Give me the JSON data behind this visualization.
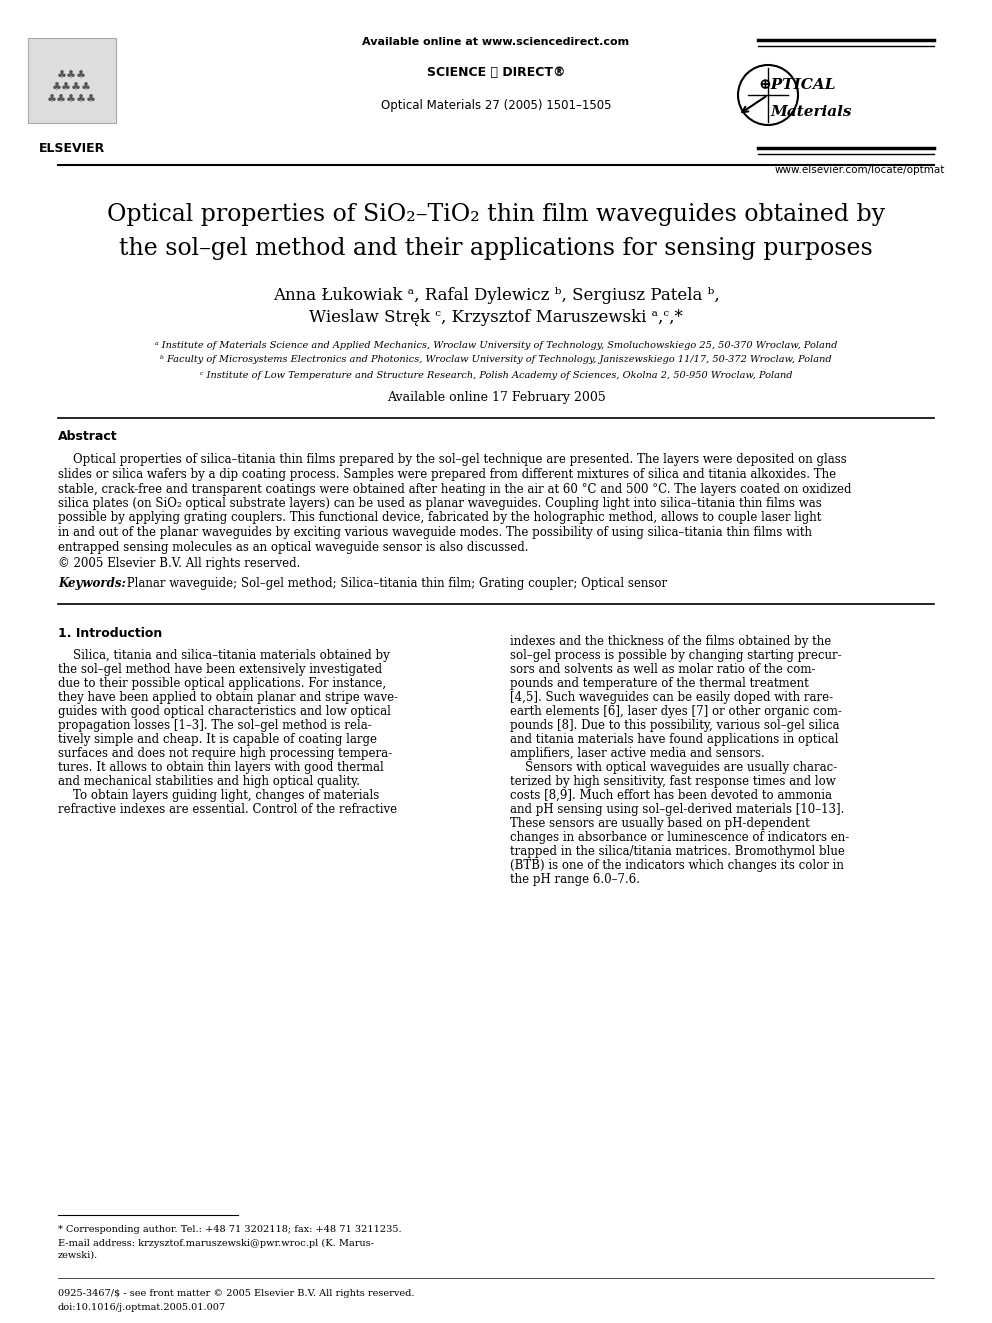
{
  "bg_color": "#ffffff",
  "available_online_text": "Available online at www.sciencedirect.com",
  "science_direct": "SCIENCE ⓓ DIRECT®",
  "journal_ref": "Optical Materials 27 (2005) 1501–1505",
  "elsevier_text": "ELSEVIER",
  "website": "www.elsevier.com/locate/optmat",
  "optical_line1": "⊕PTICAL",
  "optical_line2": "Materials",
  "title_line1": "Optical properties of SiO₂–TiO₂ thin film waveguides obtained by",
  "title_line2": "the sol–gel method and their applications for sensing purposes",
  "authors_line1": "Anna Łukowiak ᵃ, Rafal Dylewicz ᵇ, Sergiusz Patela ᵇ,",
  "authors_line2": "Wieslaw Stręk ᶜ, Krzysztof Maruszewski ᵃ,ᶜ,*",
  "affil_a": "ᵃ Institute of Materials Science and Applied Mechanics, Wroclaw University of Technology, Smoluchowskiego 25, 50-370 Wroclaw, Poland",
  "affil_b": "ᵇ Faculty of Microsystems Electronics and Photonics, Wroclaw University of Technology, Janiszewskiego 11/17, 50-372 Wroclaw, Poland",
  "affil_c": "ᶜ Institute of Low Temperature and Structure Research, Polish Academy of Sciences, Okolna 2, 50-950 Wroclaw, Poland",
  "available_online_date": "Available online 17 February 2005",
  "abstract_title": "Abstract",
  "copyright": "© 2005 Elsevier B.V. All rights reserved.",
  "keywords_label": "Keywords:",
  "keywords_text": " Planar waveguide; Sol–gel method; Silica–titania thin film; Grating coupler; Optical sensor",
  "intro_heading": "1. Introduction",
  "footnote_corresponding": "* Corresponding author. Tel.: +48 71 3202118; fax: +48 71 3211235.",
  "footnote_email": "E-mail address: krzysztof.maruszewski@pwr.wroc.pl (K. Marus-",
  "footnote_email2": "zewski).",
  "footer_issn": "0925-3467/$ - see front matter © 2005 Elsevier B.V. All rights reserved.",
  "footer_doi": "doi:10.1016/j.optmat.2005.01.007",
  "abstract_lines": [
    "    Optical properties of silica–titania thin films prepared by the sol–gel technique are presented. The layers were deposited on glass",
    "slides or silica wafers by a dip coating process. Samples were prepared from different mixtures of silica and titania alkoxides. The",
    "stable, crack-free and transparent coatings were obtained after heating in the air at 60 °C and 500 °C. The layers coated on oxidized",
    "silica plates (on SiO₂ optical substrate layers) can be used as planar waveguides. Coupling light into silica–titania thin films was",
    "possible by applying grating couplers. This functional device, fabricated by the holographic method, allows to couple laser light",
    "in and out of the planar waveguides by exciting various waveguide modes. The possibility of using silica–titania thin films with",
    "entrapped sensing molecules as an optical waveguide sensor is also discussed."
  ],
  "intro_col1_lines": [
    "    Silica, titania and silica–titania materials obtained by",
    "the sol–gel method have been extensively investigated",
    "due to their possible optical applications. For instance,",
    "they have been applied to obtain planar and stripe wave-",
    "guides with good optical characteristics and low optical",
    "propagation losses [1–3]. The sol–gel method is rela-",
    "tively simple and cheap. It is capable of coating large",
    "surfaces and does not require high processing tempera-",
    "tures. It allows to obtain thin layers with good thermal",
    "and mechanical stabilities and high optical quality.",
    "    To obtain layers guiding light, changes of materials",
    "refractive indexes are essential. Control of the refractive"
  ],
  "intro_col2_lines": [
    "indexes and the thickness of the films obtained by the",
    "sol–gel process is possible by changing starting precur-",
    "sors and solvents as well as molar ratio of the com-",
    "pounds and temperature of the thermal treatment",
    "[4,5]. Such waveguides can be easily doped with rare-",
    "earth elements [6], laser dyes [7] or other organic com-",
    "pounds [8]. Due to this possibility, various sol–gel silica",
    "and titania materials have found applications in optical",
    "amplifiers, laser active media and sensors.",
    "    Sensors with optical waveguides are usually charac-",
    "terized by high sensitivity, fast response times and low",
    "costs [8,9]. Much effort has been devoted to ammonia",
    "and pH sensing using sol–gel-derived materials [10–13].",
    "These sensors are usually based on pH-dependent",
    "changes in absorbance or luminescence of indicators en-",
    "trapped in the silica/titania matrices. Bromothymol blue",
    "(BTB) is one of the indicators which changes its color in",
    "the pH range 6.0–7.6."
  ]
}
